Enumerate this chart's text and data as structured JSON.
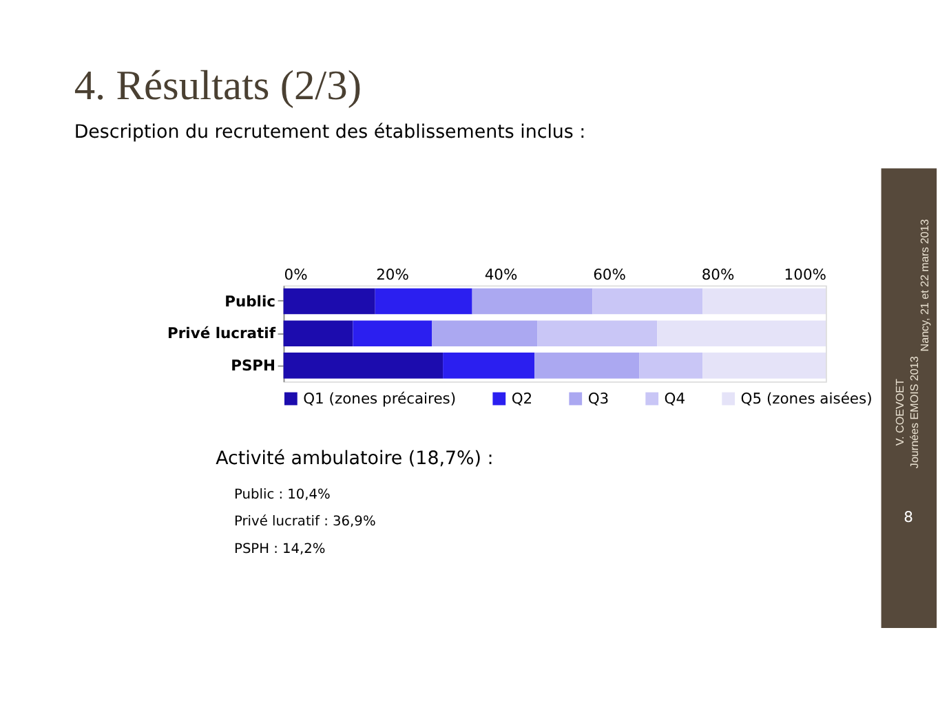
{
  "chart_data": {
    "type": "bar",
    "orientation": "horizontal",
    "stacked": true,
    "title": "4. Résultats (2/3)",
    "subtitle": "Description du recrutement des établissements inclus :",
    "categories": [
      "Public",
      "Privé lucratif",
      "PSPH"
    ],
    "series": [
      {
        "name": "Q1 (zones précaires)",
        "color": "#1c0cae",
        "values": [
          16.9,
          12.8,
          29.4
        ]
      },
      {
        "name": "Q2",
        "color": "#2b1ff0",
        "values": [
          17.9,
          14.6,
          16.9
        ]
      },
      {
        "name": "Q3",
        "color": "#aba8f1",
        "values": [
          22.2,
          19.4,
          19.3
        ]
      },
      {
        "name": "Q4",
        "color": "#c9c6f6",
        "values": [
          20.3,
          22.1,
          11.7
        ]
      },
      {
        "name": "Q5 (zones aisées)",
        "color": "#e5e3f8",
        "values": [
          22.7,
          31.1,
          22.7
        ]
      }
    ],
    "xlim": [
      0,
      100
    ],
    "xticks": [
      {
        "value": 0,
        "label": "0%"
      },
      {
        "value": 20,
        "label": "20%"
      },
      {
        "value": 40,
        "label": "40%"
      },
      {
        "value": 60,
        "label": "60%"
      },
      {
        "value": 80,
        "label": "80%"
      },
      {
        "value": 100,
        "label": "100%"
      }
    ],
    "grid": false,
    "legend": "bottom",
    "annotations": [
      "Activité ambulatoire (18,7%) :",
      "Public : 10,4%",
      "Privé lucratif : 36,9%",
      "PSPH : 14,2%",
      "V. COEVOET",
      "Journées EMOIS 2013",
      "Nancy, 21 et 22 mars 2013",
      "8"
    ]
  }
}
